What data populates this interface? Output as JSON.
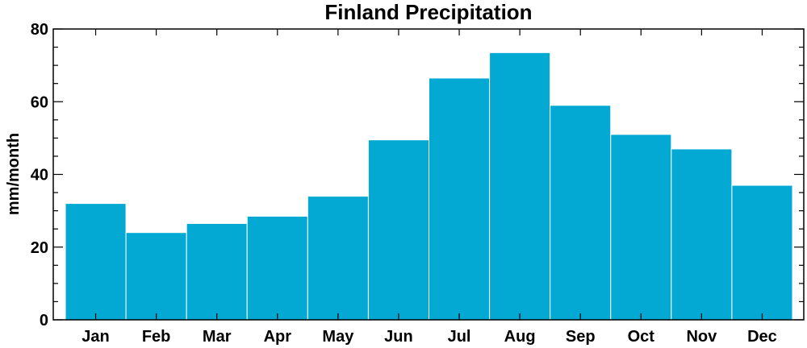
{
  "chart_data": {
    "type": "bar",
    "title": "Finland Precipitation",
    "xlabel": "",
    "ylabel": "mm/month",
    "categories": [
      "Jan",
      "Feb",
      "Mar",
      "Apr",
      "May",
      "Jun",
      "Jul",
      "Aug",
      "Sep",
      "Oct",
      "Nov",
      "Dec"
    ],
    "values": [
      32,
      24,
      26.5,
      28.5,
      34,
      49.5,
      66.5,
      73.5,
      59,
      51,
      47,
      37
    ],
    "ylim": [
      0,
      80
    ],
    "yticks": [
      "0",
      "20",
      "40",
      "60",
      "80"
    ],
    "bar_color": "#03a9d3",
    "grid": false
  }
}
